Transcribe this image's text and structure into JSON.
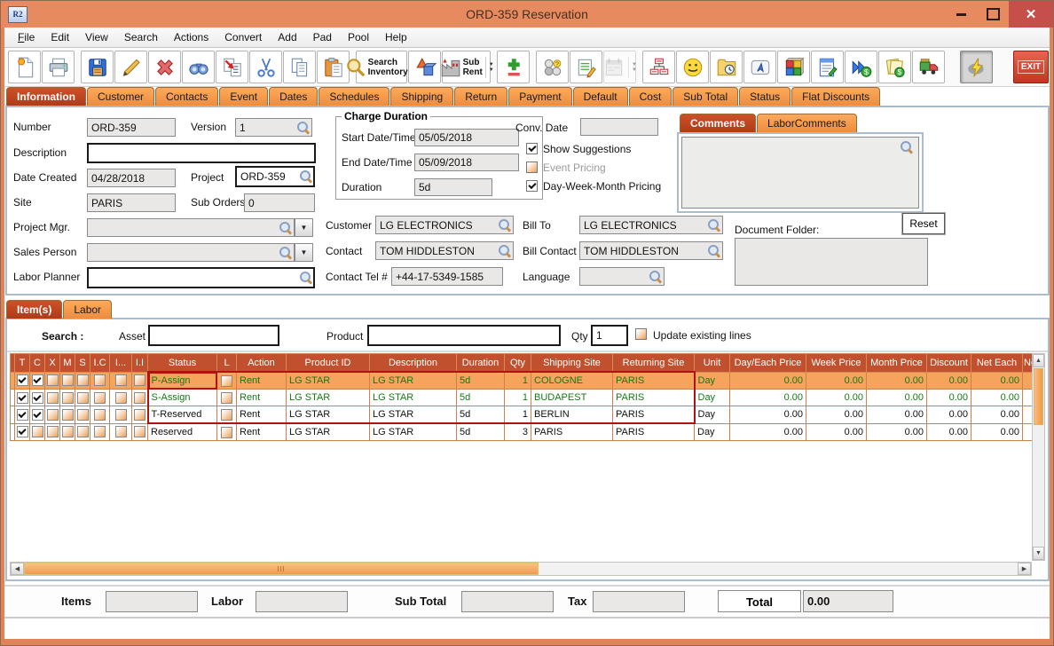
{
  "colors": {
    "titlebar": "#e78a5f",
    "close_button": "#c64f49",
    "tab_active": "#b23a15",
    "tab_inactive": "#f49b50",
    "table_header": "#c1512e",
    "row_highlight": "#f6a35c",
    "row_text_green": "#157a15",
    "selection_red": "#b01111",
    "window_border": "#e08356"
  },
  "window": {
    "title": "ORD-359 Reservation",
    "app_icon_text": "R2"
  },
  "menu": {
    "items": [
      {
        "label": "File",
        "accel": true
      },
      {
        "label": "Edit"
      },
      {
        "label": "View"
      },
      {
        "label": "Search"
      },
      {
        "label": "Actions"
      },
      {
        "label": "Convert"
      },
      {
        "label": "Add"
      },
      {
        "label": "Pad"
      },
      {
        "label": "Pool"
      },
      {
        "label": "Help"
      }
    ]
  },
  "toolbar": {
    "buttons": [
      {
        "name": "new-document"
      },
      {
        "name": "print"
      },
      {
        "name": "save",
        "gap": true
      },
      {
        "name": "edit-pencil"
      },
      {
        "name": "delete"
      },
      {
        "name": "find-binoculars"
      },
      {
        "name": "transfer-lines"
      },
      {
        "name": "cut"
      },
      {
        "name": "copy"
      },
      {
        "name": "paste"
      },
      {
        "name": "search-inventory",
        "label": "Search Inventory",
        "dropdown": true,
        "gap": true
      },
      {
        "name": "graphics-shapes"
      },
      {
        "name": "sub-rent",
        "label": "Sub Rent",
        "dropdown": true
      },
      {
        "name": "add-line",
        "gap": true
      },
      {
        "name": "pool-circles",
        "gap": true
      },
      {
        "name": "notes"
      },
      {
        "name": "calendar",
        "disabled": true,
        "dropdown": true
      },
      {
        "name": "org-chart",
        "gap": true
      },
      {
        "name": "customer-smiley"
      },
      {
        "name": "folder-history"
      },
      {
        "name": "shortcut-key"
      },
      {
        "name": "blocks"
      },
      {
        "name": "edit-document"
      },
      {
        "name": "forward-payment"
      },
      {
        "name": "invoice"
      },
      {
        "name": "delivery-truck"
      },
      {
        "name": "quick-flash",
        "pressed": true
      },
      {
        "name": "exit",
        "label": "EXIT"
      }
    ]
  },
  "main_tabs": {
    "active_index": 0,
    "tabs": [
      "Information",
      "Customer",
      "Contacts",
      "Event",
      "Dates",
      "Schedules",
      "Shipping",
      "Return",
      "Payment",
      "Default",
      "Cost",
      "Sub Total",
      "Status",
      "Flat Discounts"
    ]
  },
  "info": {
    "number": {
      "label": "Number",
      "value": "ORD-359"
    },
    "version": {
      "label": "Version",
      "value": "1"
    },
    "description": {
      "label": "Description",
      "value": ""
    },
    "date_created": {
      "label": "Date Created",
      "value": "04/28/2018"
    },
    "project": {
      "label": "Project",
      "value": "ORD-359"
    },
    "site": {
      "label": "Site",
      "value": "PARIS"
    },
    "sub_orders": {
      "label": "Sub Orders",
      "value": "0"
    },
    "project_mgr": {
      "label": "Project Mgr.",
      "value": ""
    },
    "sales_person": {
      "label": "Sales Person",
      "value": ""
    },
    "labor_planner": {
      "label": "Labor Planner",
      "value": ""
    },
    "charge_duration": {
      "title": "Charge Duration",
      "start": {
        "label": "Start Date/Time",
        "value": "05/05/2018"
      },
      "end": {
        "label": "End Date/Time",
        "value": "05/09/2018"
      },
      "duration": {
        "label": "Duration",
        "value": "5d"
      }
    },
    "conv_date": {
      "label": "Conv. Date",
      "value": ""
    },
    "show_suggestions": {
      "label": "Show Suggestions",
      "checked": true
    },
    "event_pricing": {
      "label": "Event Pricing",
      "checked": false,
      "disabled": true
    },
    "dwm_pricing": {
      "label": "Day-Week-Month Pricing",
      "checked": true
    },
    "customer": {
      "label": "Customer",
      "value": "LG ELECTRONICS"
    },
    "contact": {
      "label": "Contact",
      "value": "TOM HIDDLESTON"
    },
    "contact_tel": {
      "label": "Contact Tel #",
      "value": "+44-17-5349-1585"
    },
    "bill_to": {
      "label": "Bill To",
      "value": "LG ELECTRONICS"
    },
    "bill_contact": {
      "label": "Bill Contact",
      "value": "TOM HIDDLESTON"
    },
    "language": {
      "label": "Language",
      "value": ""
    },
    "comments_tabs": {
      "active_index": 0,
      "tabs": [
        "Comments",
        "LaborComments"
      ]
    },
    "comments_value": "",
    "document_folder": {
      "label": "Document Folder:",
      "reset_label": "Reset",
      "value": ""
    }
  },
  "items_section": {
    "tabs": {
      "active_index": 0,
      "tabs": [
        "Item(s)",
        "Labor"
      ]
    },
    "search": {
      "search_label": "Search :",
      "asset_label": "Asset",
      "asset_value": "",
      "product_label": "Product",
      "product_value": "",
      "qty_label": "Qty",
      "qty_value": "1",
      "update_label": "Update existing lines",
      "update_checked": false
    }
  },
  "table": {
    "columns": [
      {
        "key": "sel",
        "label": "",
        "w": 5,
        "type": "sel"
      },
      {
        "key": "c0",
        "label": "T",
        "w": 17,
        "type": "check"
      },
      {
        "key": "c1",
        "label": "C",
        "w": 17,
        "type": "check"
      },
      {
        "key": "c2",
        "label": "X",
        "w": 17,
        "type": "check"
      },
      {
        "key": "c3",
        "label": "M",
        "w": 17,
        "type": "check"
      },
      {
        "key": "c4",
        "label": "S",
        "w": 17,
        "type": "check"
      },
      {
        "key": "c5",
        "label": "I.C",
        "w": 22,
        "type": "check"
      },
      {
        "key": "c6",
        "label": "I...",
        "w": 25,
        "type": "check"
      },
      {
        "key": "c7",
        "label": "I.I",
        "w": 18,
        "type": "check"
      },
      {
        "key": "status",
        "label": "Status",
        "w": 78
      },
      {
        "key": "l",
        "label": "L",
        "w": 22,
        "type": "lcheck"
      },
      {
        "key": "action",
        "label": "Action",
        "w": 56
      },
      {
        "key": "product_id",
        "label": "Product ID",
        "w": 94
      },
      {
        "key": "description",
        "label": "Description",
        "w": 98
      },
      {
        "key": "duration",
        "label": "Duration",
        "w": 54
      },
      {
        "key": "qty",
        "label": "Qty",
        "w": 30,
        "align": "right"
      },
      {
        "key": "shipping_site",
        "label": "Shipping Site",
        "w": 92
      },
      {
        "key": "returning_site",
        "label": "Returning Site",
        "w": 92
      },
      {
        "key": "unit",
        "label": "Unit",
        "w": 40
      },
      {
        "key": "day_each_price",
        "label": "Day/Each Price",
        "w": 86,
        "align": "right"
      },
      {
        "key": "week_price",
        "label": "Week Price",
        "w": 68,
        "align": "right"
      },
      {
        "key": "month_price",
        "label": "Month Price",
        "w": 68,
        "align": "right"
      },
      {
        "key": "discount",
        "label": "Discount",
        "w": 50,
        "align": "right"
      },
      {
        "key": "net_each",
        "label": "Net Each",
        "w": 58,
        "align": "right"
      },
      {
        "key": "ne_cut",
        "label": "Ne",
        "w": 12
      }
    ],
    "rows": [
      {
        "checks": [
          1,
          1,
          0,
          0,
          0,
          0,
          0,
          0
        ],
        "l": 0,
        "status": "P-Assign",
        "action": "Rent",
        "product_id": "LG STAR",
        "description": "LG STAR",
        "duration": "5d",
        "qty": "1",
        "shipping_site": "COLOGNE",
        "returning_site": "PARIS",
        "unit": "Day",
        "day_each_price": "0.00",
        "week_price": "0.00",
        "month_price": "0.00",
        "discount": "0.00",
        "net_each": "0.00",
        "ne_cut": "",
        "row_style": "highlight",
        "text_style": "green"
      },
      {
        "checks": [
          1,
          1,
          0,
          0,
          0,
          0,
          0,
          0
        ],
        "l": 0,
        "status": "S-Assign",
        "action": "Rent",
        "product_id": "LG STAR",
        "description": "LG STAR",
        "duration": "5d",
        "qty": "1",
        "shipping_site": "BUDAPEST",
        "returning_site": "PARIS",
        "unit": "Day",
        "day_each_price": "0.00",
        "week_price": "0.00",
        "month_price": "0.00",
        "discount": "0.00",
        "net_each": "0.00",
        "ne_cut": "",
        "row_style": "normal",
        "text_style": "green"
      },
      {
        "checks": [
          1,
          1,
          0,
          0,
          0,
          0,
          0,
          0
        ],
        "l": 0,
        "status": "T-Reserved",
        "action": "Rent",
        "product_id": "LG STAR",
        "description": "LG STAR",
        "duration": "5d",
        "qty": "1",
        "shipping_site": "BERLIN",
        "returning_site": "PARIS",
        "unit": "Day",
        "day_each_price": "0.00",
        "week_price": "0.00",
        "month_price": "0.00",
        "discount": "0.00",
        "net_each": "0.00",
        "ne_cut": "",
        "row_style": "normal",
        "text_style": "black"
      },
      {
        "checks": [
          1,
          0,
          0,
          0,
          0,
          0,
          0,
          0
        ],
        "l": 0,
        "status": "Reserved",
        "action": "Rent",
        "product_id": "LG STAR",
        "description": "LG STAR",
        "duration": "5d",
        "qty": "3",
        "shipping_site": "PARIS",
        "returning_site": "PARIS",
        "unit": "Day",
        "day_each_price": "0.00",
        "week_price": "0.00",
        "month_price": "0.00",
        "discount": "0.00",
        "net_each": "0.00",
        "ne_cut": "",
        "row_style": "normal",
        "text_style": "black"
      }
    ],
    "selection": {
      "row_start": 0,
      "row_end": 2,
      "col_start": 9,
      "col_end": 17,
      "focus_row": 0,
      "focus_col": 9
    }
  },
  "totals": {
    "items_label": "Items",
    "items_value": "",
    "labor_label": "Labor",
    "labor_value": "",
    "sub_total_label": "Sub Total",
    "sub_total_value": "",
    "tax_label": "Tax",
    "tax_value": "",
    "total_label": "Total",
    "total_value": "0.00"
  }
}
